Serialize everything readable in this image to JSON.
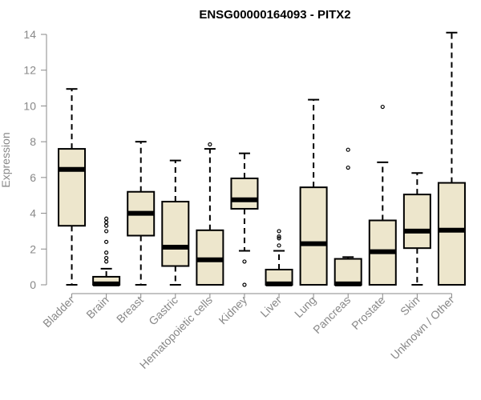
{
  "chart_data": {
    "type": "boxplot",
    "title": "ENSG00000164093 - PITX2",
    "xlabel": "",
    "ylabel": "Expression",
    "ylim": [
      0,
      14
    ],
    "yticks": [
      0,
      2,
      4,
      6,
      8,
      10,
      12,
      14
    ],
    "categories": [
      "Bladder",
      "Brain",
      "Breast",
      "Gastric",
      "Hematopoietic cells",
      "Kidney",
      "Liver",
      "Lung",
      "Pancreas",
      "Prostate",
      "Skin",
      "Unknown / Other"
    ],
    "boxes": [
      {
        "min": 0,
        "q1": 3.3,
        "median": 6.45,
        "q3": 7.6,
        "max": 10.95,
        "outliers": []
      },
      {
        "min": 0,
        "q1": 0,
        "median": 0.05,
        "q3": 0.45,
        "max": 0.9,
        "outliers": [
          1.3,
          1.5,
          1.8,
          2.4,
          3.0,
          3.3,
          3.5,
          3.7
        ]
      },
      {
        "min": 0,
        "q1": 2.75,
        "median": 4.0,
        "q3": 5.2,
        "max": 8.0,
        "outliers": []
      },
      {
        "min": 0,
        "q1": 1.05,
        "median": 2.1,
        "q3": 4.65,
        "max": 6.95,
        "outliers": []
      },
      {
        "min": 0,
        "q1": 0,
        "median": 1.4,
        "q3": 3.05,
        "max": 7.6,
        "outliers": [
          7.85
        ]
      },
      {
        "min": 1.9,
        "q1": 4.25,
        "median": 4.75,
        "q3": 5.95,
        "max": 7.35,
        "outliers": [
          1.3,
          0
        ]
      },
      {
        "min": 0,
        "q1": 0,
        "median": 0.05,
        "q3": 0.85,
        "max": 1.9,
        "outliers": [
          2.2,
          2.6,
          2.7,
          3.0
        ]
      },
      {
        "min": 0,
        "q1": 0,
        "median": 2.3,
        "q3": 5.45,
        "max": 10.35,
        "outliers": []
      },
      {
        "min": 0,
        "q1": 0,
        "median": 0.05,
        "q3": 1.45,
        "max": 1.55,
        "outliers": [
          6.55,
          7.55
        ]
      },
      {
        "min": 0,
        "q1": 0,
        "median": 1.85,
        "q3": 3.6,
        "max": 6.85,
        "outliers": [
          9.95
        ]
      },
      {
        "min": 0,
        "q1": 2.05,
        "median": 3.0,
        "q3": 5.05,
        "max": 6.25,
        "outliers": []
      },
      {
        "min": 0,
        "q1": 0,
        "median": 3.05,
        "q3": 5.7,
        "max": 14.1,
        "outliers": []
      }
    ],
    "grid": false,
    "legend": "none",
    "box_fill": "#EDE6CC",
    "box_stroke": "#000000",
    "axis_label_color": "#888888",
    "title_color": "#000000"
  }
}
